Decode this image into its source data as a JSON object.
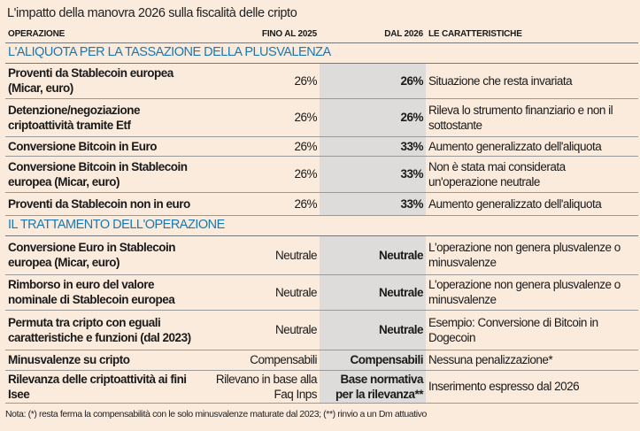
{
  "title": "L'impatto della manovra 2026 sulla fiscalità delle cripto",
  "headers": [
    "OPERAZIONE",
    "FINO AL 2025",
    "DAL 2026",
    "LE CARATTERISTICHE"
  ],
  "sections": [
    {
      "title": "L'ALIQUOTA PER LA TASSAZIONE DELLA PLUSVALENZA",
      "rows": [
        {
          "op": "Proventi da Stablecoin europea (Micar, euro)",
          "until2025": "26%",
          "from2026": "26%",
          "note": "Situazione che resta invariata",
          "h": 40
        },
        {
          "op": "Detenzione/negoziazione criptoattività tramite Etf",
          "until2025": "26%",
          "from2026": "26%",
          "note": "Rileva lo strumento finanziario e non il sottostante",
          "h": 43
        },
        {
          "op": "Conversione Bitcoin in Euro",
          "until2025": "26%",
          "from2026": "33%",
          "note": "Aumento generalizzato dell'aliquota",
          "h": 22
        },
        {
          "op": "Conversione Bitcoin in Stablecoin europea (Micar, euro)",
          "until2025": "26%",
          "from2026": "33%",
          "note": "Non è stata mai considerata un'operazione neutrale",
          "h": 41
        },
        {
          "op": "Proventi da Stablecoin non in euro",
          "until2025": "26%",
          "from2026": "33%",
          "note": "Aumento generalizzato dell'aliquota",
          "h": 26
        }
      ]
    },
    {
      "title": "IL TRATTAMENTO DELL'OPERAZIONE",
      "rows": [
        {
          "op": "Conversione Euro in Stablecoin europea (Micar, euro)",
          "until2025": "Neutrale",
          "from2026": "Neutrale",
          "note": "L'operazione non genera plusvalenze o minusvalenze",
          "h": 44
        },
        {
          "op": "Rimborso in euro del valore nominale di Stablecoin europea",
          "until2025": "Neutrale",
          "from2026": "Neutrale",
          "note": "L'operazione non genera plusvalenze o minusvalenze",
          "h": 40
        },
        {
          "op": "Permuta tra cripto con eguali caratteristiche e funzioni (dal 2023)",
          "until2025": "Neutrale",
          "from2026": "Neutrale",
          "note": "Esempio: Conversione di Bitcoin in Dogecoin",
          "h": 45
        },
        {
          "op": "Minusvalenze su cripto",
          "until2025": "Compensabili",
          "from2026": "Compensabili",
          "note": "Nessuna penalizzazione*",
          "h": 23
        },
        {
          "op": "Rilevanza delle criptoattività ai fini Isee",
          "until2025": "Rilevano in base alla Faq Inps",
          "from2026": "Base normativa per la rilevanza**",
          "note": "Inserimento espresso dal 2026",
          "h": 37
        }
      ]
    }
  ],
  "footnote": "Nota: (*) resta ferma la compensabilità con le solo minusvalenze maturate dal 2023; (**) rinvio a un Dm attuativo"
}
